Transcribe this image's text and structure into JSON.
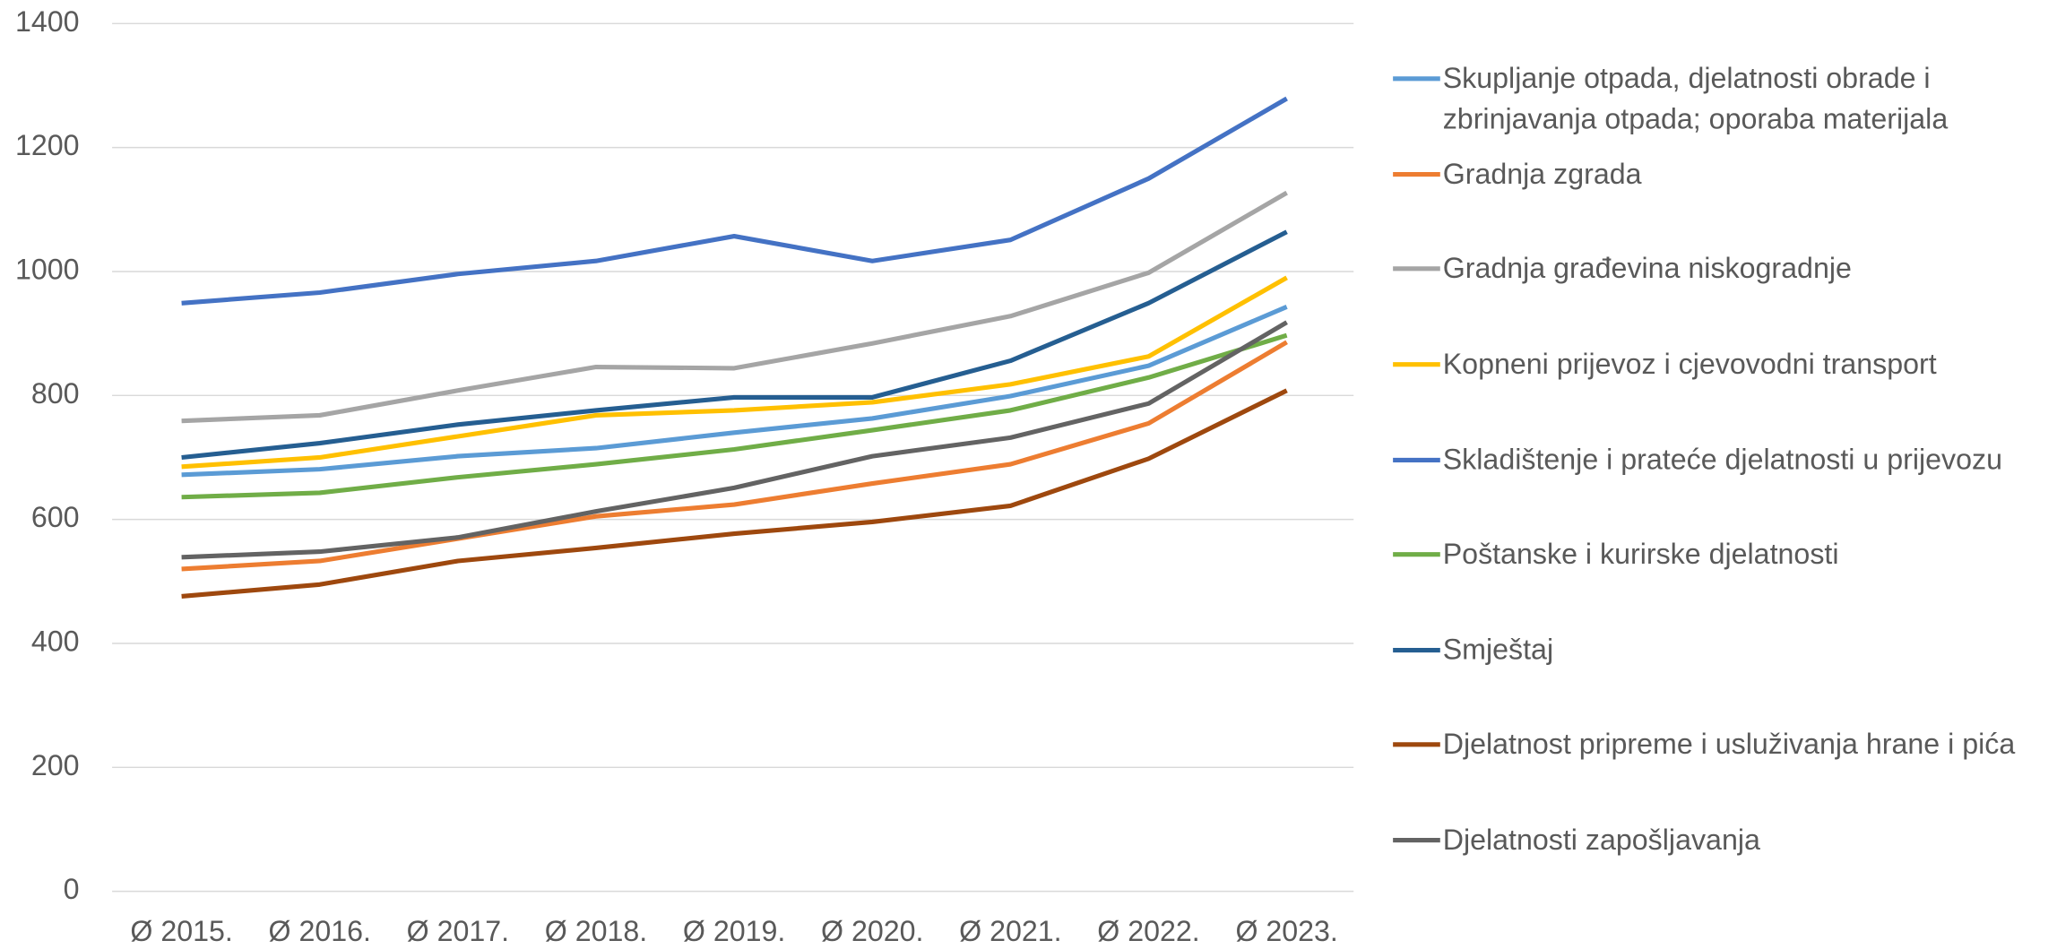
{
  "chart_data": {
    "type": "line",
    "categories": [
      "Ø 2015.",
      "Ø 2016.",
      "Ø 2017.",
      "Ø 2018.",
      "Ø 2019.",
      "Ø 2020.",
      "Ø 2021.",
      "Ø 2022.",
      "Ø 2023."
    ],
    "ylim": [
      0,
      1400
    ],
    "yticks": [
      0,
      200,
      400,
      600,
      800,
      1000,
      1200,
      1400
    ],
    "grid": true,
    "legend": "right",
    "series": [
      {
        "name": "Skupljanje otpada, djelatnosti obrade i zbrinjavanja otpada; oporaba materijala",
        "color": "#5b9bd5",
        "values": [
          672,
          681,
          702,
          715,
          740,
          763,
          799,
          848,
          943
        ]
      },
      {
        "name": "Gradnja zgrada",
        "color": "#ed7d31",
        "values": [
          520,
          533,
          569,
          605,
          624,
          658,
          689,
          755,
          886
        ]
      },
      {
        "name": "Gradnja građevina niskogradnje",
        "color": "#a5a5a5",
        "values": [
          759,
          768,
          808,
          846,
          844,
          884,
          928,
          998,
          1127
        ]
      },
      {
        "name": "Kopneni prijevoz i cjevovodni transport",
        "color": "#ffc000",
        "values": [
          685,
          700,
          734,
          768,
          776,
          789,
          818,
          863,
          990
        ]
      },
      {
        "name": "Skladištenje i prateće djelatnosti u prijevozu",
        "color": "#4472c4",
        "values": [
          949,
          966,
          996,
          1017,
          1057,
          1017,
          1051,
          1150,
          1279
        ]
      },
      {
        "name": "Poštanske i kurirske djelatnosti",
        "color": "#70ad47",
        "values": [
          636,
          643,
          668,
          689,
          713,
          744,
          776,
          829,
          897
        ]
      },
      {
        "name": "Smještaj",
        "color": "#255e91",
        "values": [
          700,
          723,
          753,
          776,
          797,
          797,
          856,
          949,
          1064
        ]
      },
      {
        "name": "Djelatnost pripreme i usluživanja hrane i pića",
        "color": "#9e480e",
        "values": [
          476,
          495,
          533,
          554,
          577,
          596,
          622,
          698,
          808
        ]
      },
      {
        "name": "Djelatnosti zapošljavanja",
        "color": "#636363",
        "values": [
          539,
          548,
          571,
          613,
          651,
          702,
          732,
          787,
          918
        ]
      }
    ]
  }
}
